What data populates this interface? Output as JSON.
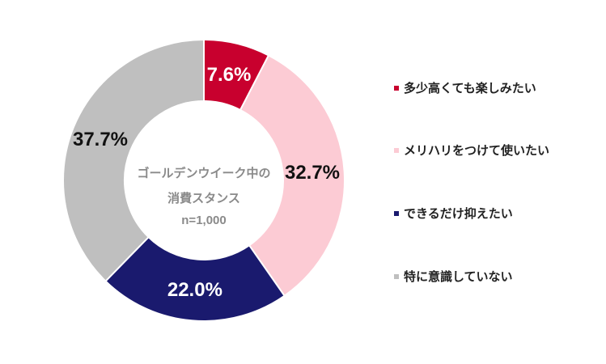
{
  "chart_data": {
    "type": "pie",
    "variant": "donut",
    "title": "ゴールデンウイーク中の消費スタンス",
    "sample_size": "n=1,000",
    "categories": [
      "多少高くても楽しみたい",
      "メリハリをつけて使いたい",
      "できるだけ抑えたい",
      "特に意識していない"
    ],
    "values": [
      7.6,
      32.7,
      22.0,
      37.7
    ],
    "labels": [
      "7.6%",
      "32.7%",
      "22.0%",
      "37.7%"
    ],
    "colors": [
      "#c8002e",
      "#fccbd4",
      "#1a1a6e",
      "#bfbfbf"
    ],
    "label_colors": [
      "#ffffff",
      "#111111",
      "#ffffff",
      "#111111"
    ],
    "legend_position": "right",
    "start_angle_deg": 0,
    "direction": "clockwise"
  },
  "center": {
    "line1": "ゴールデンウイーク中の",
    "line2": "消費スタンス",
    "line3": "n=1,000"
  },
  "legend": {
    "items": [
      {
        "label": "多少高くても楽しみたい",
        "color": "#c8002e"
      },
      {
        "label": "メリハリをつけて使いたい",
        "color": "#fccbd4"
      },
      {
        "label": "できるだけ抑えたい",
        "color": "#1a1a6e"
      },
      {
        "label": "特に意識していない",
        "color": "#bfbfbf"
      }
    ]
  }
}
